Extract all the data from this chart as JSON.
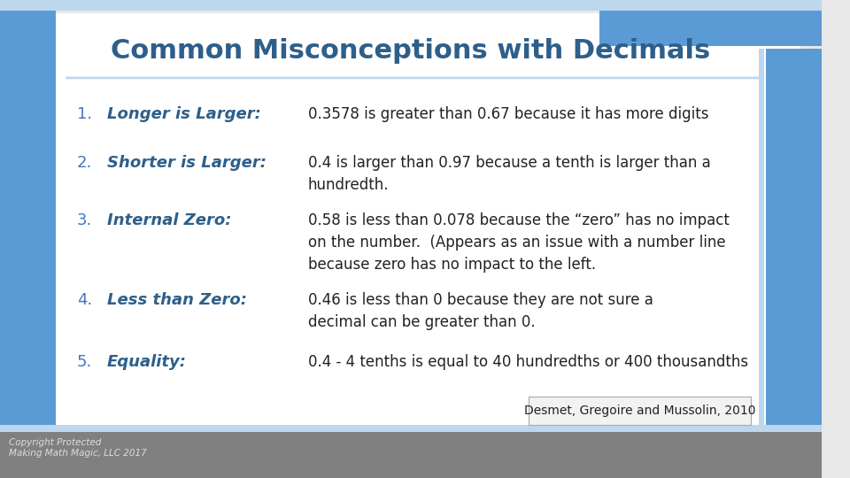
{
  "title": "Common Misconceptions with Decimals",
  "title_color": "#2E5F8A",
  "bg_color": "#FFFFFF",
  "slide_bg": "#E8E8E8",
  "items": [
    {
      "number": "1.",
      "label": "Longer is Larger:",
      "text": "0.3578 is greater than 0.67 because it has more digits"
    },
    {
      "number": "2.",
      "label": "Shorter is Larger:",
      "text": "0.4 is larger than 0.97 because a tenth is larger than a\nhundredth."
    },
    {
      "number": "3.",
      "label": "Internal Zero:",
      "text": "0.58 is less than 0.078 because the “zero” has no impact\non the number.  (Appears as an issue with a number line\nbecause zero has no impact to the left."
    },
    {
      "number": "4.",
      "label": "Less than Zero:",
      "text": "0.46 is less than 0 because they are not sure a\ndecimal can be greater than 0."
    },
    {
      "number": "5.",
      "label": "Equality:",
      "text": "0.4 - 4 tenths is equal to 40 hundredths or 400 thousandths"
    }
  ],
  "number_color": "#4472C4",
  "label_color": "#2E5F8A",
  "text_color": "#222222",
  "citation": "Desmet, Gregoire and Mussolin, 2010",
  "copyright": "Copyright Protected\nMaking Math Magic, LLC 2017",
  "accent_colors": {
    "top_left_rect": "#5B9BD5",
    "top_right_rect": "#5B9BD5",
    "left_bar": "#5B9BD5",
    "right_bar": "#5B9BD5",
    "bottom_bar": "#7F7F7F",
    "top_line_teal": "#70AD47"
  }
}
